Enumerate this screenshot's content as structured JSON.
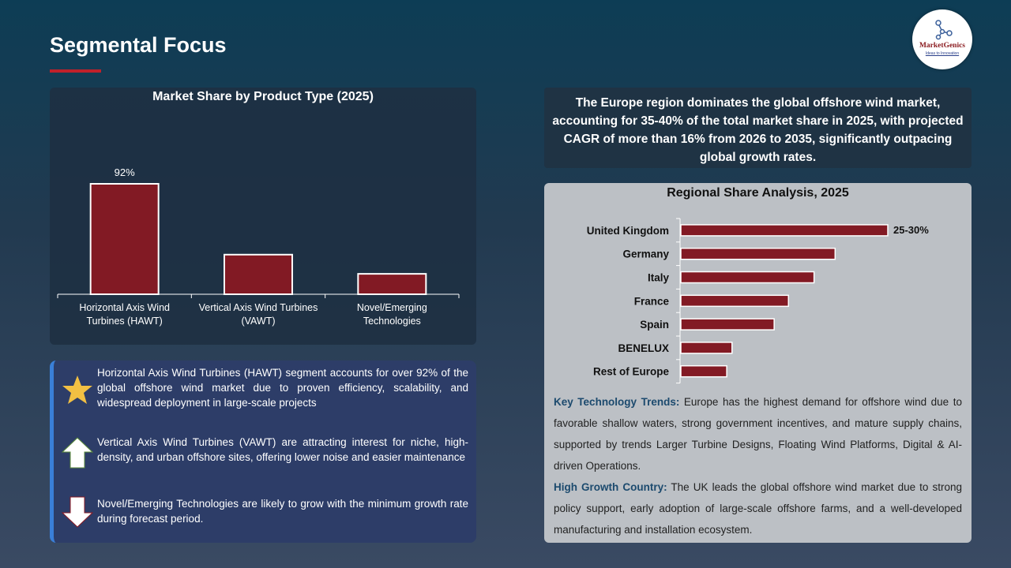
{
  "header": {
    "title": "Segmental Focus",
    "logo_name": "MarketGenics",
    "logo_tagline": "Ideas to Innovation"
  },
  "colors": {
    "bar": "#821a24",
    "accent": "#c0202a",
    "highlight_label": "#1c4a6e"
  },
  "summary": "The Europe region dominates the global offshore wind market, accounting for 35-40% of the total market share in 2025, with projected CAGR of more than 16% from 2026 to 2035, significantly outpacing global growth rates.",
  "chart_data": [
    {
      "type": "bar",
      "title": "Market Share by Product Type (2025)",
      "categories": [
        "Horizontal Axis Wind Turbines (HAWT)",
        "Vertical Axis Wind Turbines (VAWT)",
        "Novel/Emerging Technologies"
      ],
      "values": [
        92,
        33,
        17
      ],
      "data_labels": [
        "92%",
        "",
        ""
      ],
      "grid": false
    },
    {
      "type": "bar",
      "orientation": "horizontal",
      "title": "Regional Share Analysis, 2025",
      "categories": [
        "United Kingdom",
        "Germany",
        "Italy",
        "France",
        "Spain",
        "BENELUX",
        "Rest of Europe"
      ],
      "values": [
        27.5,
        20.5,
        17.7,
        14.3,
        12.4,
        6.8,
        6.1
      ],
      "data_labels": [
        "25-30%",
        "",
        "",
        "",
        "",
        "",
        ""
      ],
      "grid": false
    }
  ],
  "trends": {
    "label1": "Key Technology Trends:",
    "text1": " Europe has the highest demand for offshore wind due to favorable shallow waters, strong government incentives, and mature supply chains, supported by trends Larger Turbine Designs, Floating Wind Platforms, Digital & AI-driven Operations.",
    "label2": "High Growth Country:",
    "text2": " The UK leads the global offshore wind market due to strong policy support, early adoption of large-scale offshore farms, and a well-developed manufacturing and installation ecosystem."
  },
  "insights": [
    {
      "icon": "star-icon",
      "text": "Horizontal Axis Wind Turbines (HAWT) segment accounts for over 92% of the global offshore wind market due to proven efficiency, scalability, and widespread deployment in large-scale projects"
    },
    {
      "icon": "arrow-up-icon",
      "text": "Vertical Axis Wind Turbines (VAWT) are attracting interest for niche, high-density, and urban offshore sites, offering lower noise and easier maintenance"
    },
    {
      "icon": "arrow-down-icon",
      "text": "Novel/Emerging Technologies are likely to grow with the minimum growth rate during forecast period."
    }
  ]
}
